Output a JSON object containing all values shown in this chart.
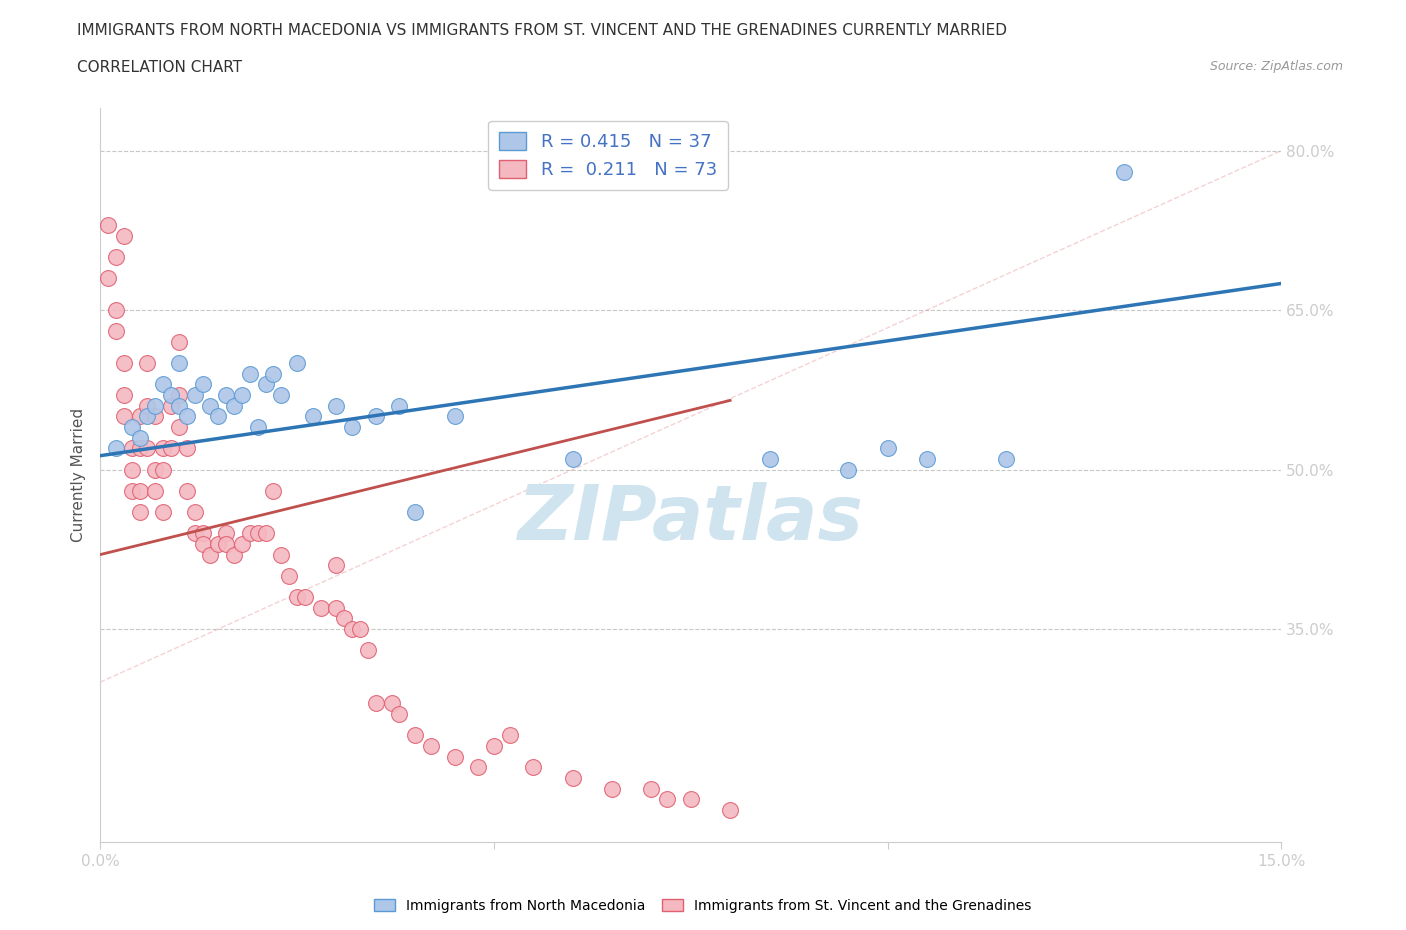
{
  "title": "IMMIGRANTS FROM NORTH MACEDONIA VS IMMIGRANTS FROM ST. VINCENT AND THE GRENADINES CURRENTLY MARRIED",
  "subtitle": "CORRELATION CHART",
  "source": "Source: ZipAtlas.com",
  "ylabel": "Currently Married",
  "xlim": [
    0.0,
    0.15
  ],
  "ylim": [
    0.15,
    0.84
  ],
  "yticks": [
    0.35,
    0.5,
    0.65,
    0.8
  ],
  "ytick_labels": [
    "35.0%",
    "50.0%",
    "65.0%",
    "80.0%"
  ],
  "xticks": [
    0.0,
    0.05,
    0.1,
    0.15
  ],
  "xtick_labels": [
    "0.0%",
    "",
    "",
    "15.0%"
  ],
  "blue_label": "Immigrants from North Macedonia",
  "pink_label": "Immigrants from St. Vincent and the Grenadines",
  "blue_color": "#aec6e8",
  "blue_edge": "#5b9bd5",
  "pink_color": "#f4b8c1",
  "pink_edge": "#e06070",
  "blue_line_color": "#2e75b6",
  "pink_line_color": "#c0504d",
  "diag_line_color": "#e08080",
  "watermark": "ZIPatlas",
  "watermark_color": "#d0e4f0",
  "background_color": "#ffffff",
  "blue_x": [
    0.002,
    0.004,
    0.005,
    0.006,
    0.007,
    0.008,
    0.009,
    0.01,
    0.01,
    0.011,
    0.012,
    0.013,
    0.014,
    0.015,
    0.016,
    0.017,
    0.018,
    0.019,
    0.02,
    0.021,
    0.022,
    0.023,
    0.025,
    0.027,
    0.03,
    0.032,
    0.035,
    0.038,
    0.04,
    0.045,
    0.06,
    0.085,
    0.095,
    0.1,
    0.105,
    0.115,
    0.13
  ],
  "blue_y": [
    0.52,
    0.54,
    0.53,
    0.55,
    0.56,
    0.58,
    0.57,
    0.6,
    0.56,
    0.55,
    0.57,
    0.58,
    0.56,
    0.55,
    0.57,
    0.56,
    0.57,
    0.59,
    0.54,
    0.58,
    0.59,
    0.57,
    0.6,
    0.55,
    0.56,
    0.54,
    0.55,
    0.56,
    0.46,
    0.55,
    0.51,
    0.51,
    0.5,
    0.52,
    0.51,
    0.51,
    0.78
  ],
  "pink_x": [
    0.001,
    0.001,
    0.002,
    0.002,
    0.002,
    0.003,
    0.003,
    0.003,
    0.003,
    0.004,
    0.004,
    0.004,
    0.005,
    0.005,
    0.005,
    0.005,
    0.006,
    0.006,
    0.006,
    0.007,
    0.007,
    0.007,
    0.008,
    0.008,
    0.008,
    0.009,
    0.009,
    0.01,
    0.01,
    0.01,
    0.011,
    0.011,
    0.012,
    0.012,
    0.013,
    0.013,
    0.014,
    0.015,
    0.016,
    0.016,
    0.017,
    0.018,
    0.019,
    0.02,
    0.021,
    0.022,
    0.023,
    0.024,
    0.025,
    0.026,
    0.028,
    0.03,
    0.03,
    0.031,
    0.032,
    0.033,
    0.034,
    0.035,
    0.037,
    0.038,
    0.04,
    0.042,
    0.045,
    0.048,
    0.05,
    0.052,
    0.055,
    0.06,
    0.065,
    0.07,
    0.072,
    0.075,
    0.08
  ],
  "pink_y": [
    0.73,
    0.68,
    0.7,
    0.65,
    0.63,
    0.6,
    0.57,
    0.55,
    0.72,
    0.52,
    0.5,
    0.48,
    0.55,
    0.52,
    0.48,
    0.46,
    0.6,
    0.56,
    0.52,
    0.55,
    0.5,
    0.48,
    0.52,
    0.5,
    0.46,
    0.56,
    0.52,
    0.62,
    0.57,
    0.54,
    0.48,
    0.52,
    0.46,
    0.44,
    0.44,
    0.43,
    0.42,
    0.43,
    0.44,
    0.43,
    0.42,
    0.43,
    0.44,
    0.44,
    0.44,
    0.48,
    0.42,
    0.4,
    0.38,
    0.38,
    0.37,
    0.37,
    0.41,
    0.36,
    0.35,
    0.35,
    0.33,
    0.28,
    0.28,
    0.27,
    0.25,
    0.24,
    0.23,
    0.22,
    0.24,
    0.25,
    0.22,
    0.21,
    0.2,
    0.2,
    0.19,
    0.19,
    0.18
  ],
  "blue_trend_x0": 0.0,
  "blue_trend_y0": 0.513,
  "blue_trend_x1": 0.15,
  "blue_trend_y1": 0.675,
  "pink_trend_x0": 0.0,
  "pink_trend_y0": 0.42,
  "pink_trend_x1": 0.08,
  "pink_trend_y1": 0.565
}
